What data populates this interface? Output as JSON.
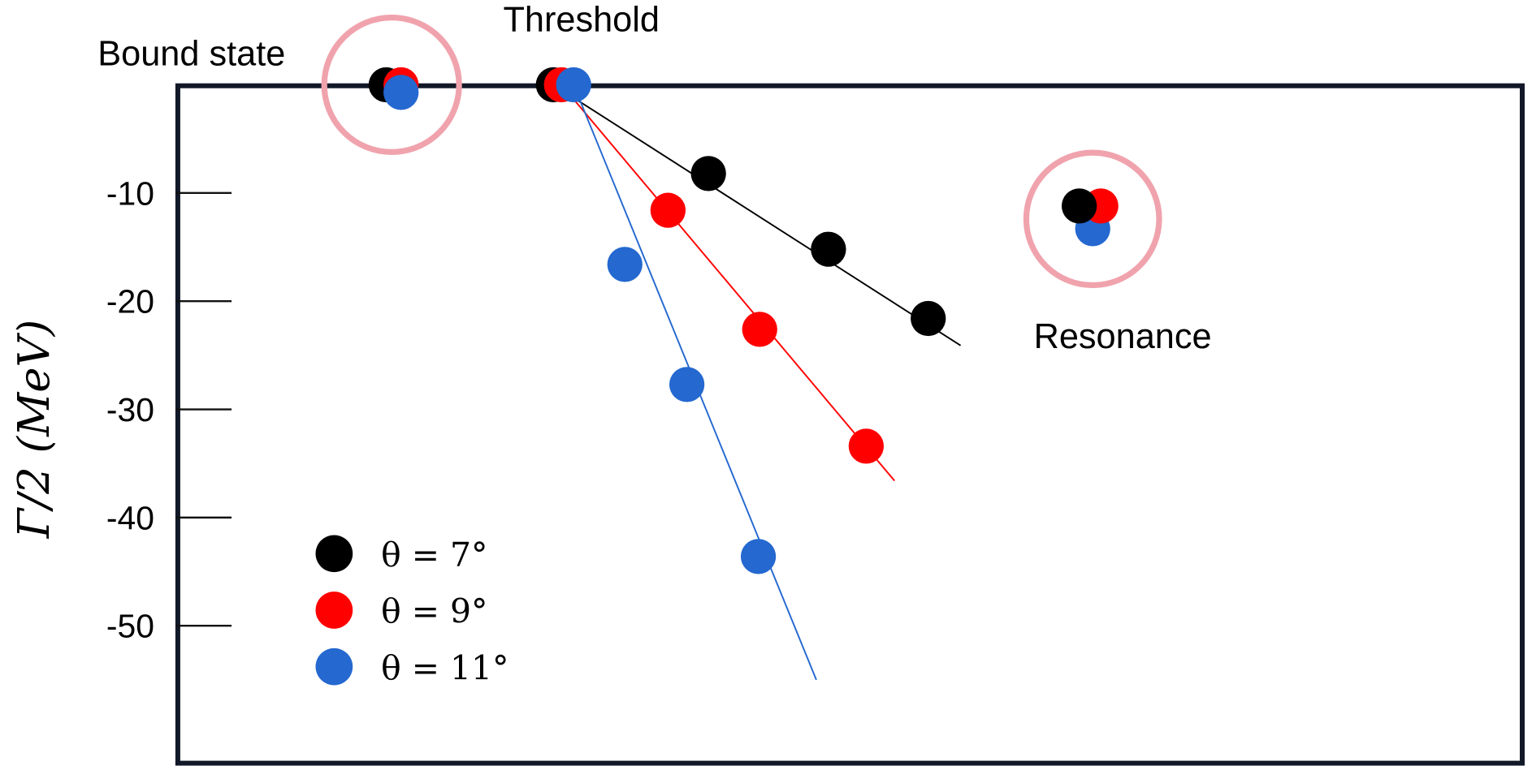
{
  "chart_data": {
    "type": "scatter",
    "title": "",
    "xlabel": "",
    "ylabel": "Γ/2 (MeV)",
    "xlim": [
      0,
      100
    ],
    "ylim": [
      -63,
      0
    ],
    "x_ticks_shown": false,
    "yticks": [
      -10,
      -20,
      -30,
      -40,
      -50
    ],
    "ytick_labels": [
      "-10",
      "-20",
      "-30",
      "-40",
      "-50"
    ],
    "grid": false,
    "legend_position": "bottom-left",
    "annotations": [
      {
        "text": "Bound state",
        "circled": true
      },
      {
        "text": "Threshold",
        "circled": false
      },
      {
        "text": "Resonance",
        "circled": true
      }
    ],
    "highlight_circle_color": "#f0a3ad",
    "series": [
      {
        "name": "θ = 7°",
        "color": "#000000",
        "bound_state": [
          15.6,
          0
        ],
        "resonance": [
          67.0,
          -11.2
        ],
        "continuum": {
          "x": [
            28.0,
            39.5,
            48.4,
            55.8
          ],
          "y": [
            0,
            -8.2,
            -15.2,
            -21.6
          ]
        },
        "line_end": [
          58.2,
          -24.1
        ]
      },
      {
        "name": "θ = 9°",
        "color": "#ff0000",
        "bound_state": [
          16.7,
          0
        ],
        "resonance": [
          68.6,
          -11.2
        ],
        "continuum": {
          "x": [
            28.6,
            36.5,
            43.3,
            51.2
          ],
          "y": [
            0,
            -11.6,
            -22.6,
            -33.4
          ]
        },
        "line_end": [
          53.3,
          -36.6
        ]
      },
      {
        "name": "θ = 11°",
        "color": "#2468d0",
        "bound_state": [
          16.7,
          -0.7
        ],
        "resonance": [
          68.0,
          -13.3
        ],
        "continuum": {
          "x": [
            29.5,
            33.3,
            37.9,
            43.2
          ],
          "y": [
            0,
            -16.6,
            -27.7,
            -43.6
          ]
        },
        "line_end": [
          47.5,
          -55.0
        ]
      }
    ]
  }
}
